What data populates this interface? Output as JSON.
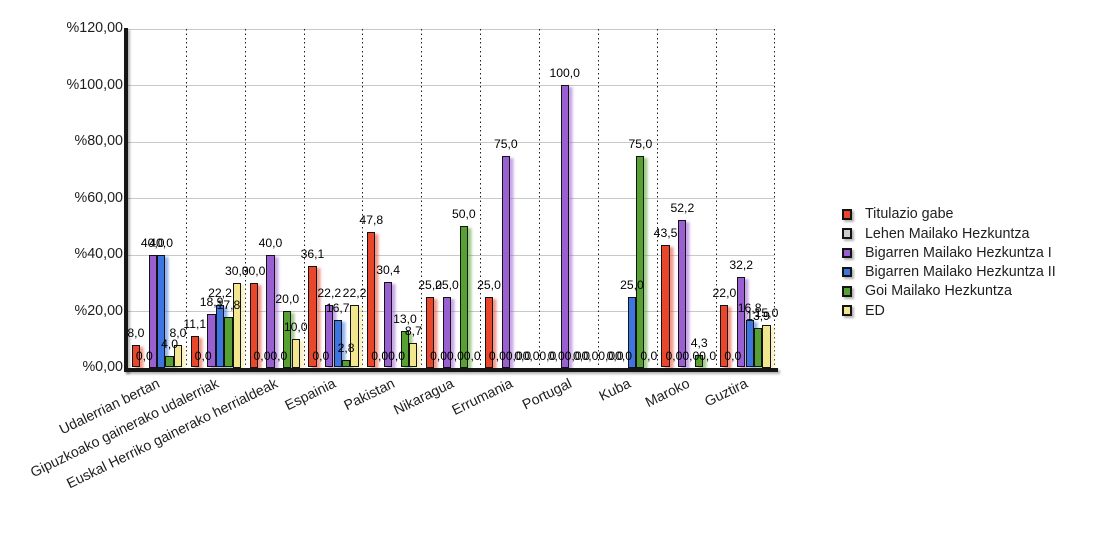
{
  "chart_data": {
    "type": "bar",
    "title": "",
    "categories": [
      "Udalerrian bertan",
      "Gipuzkoako gainerako udalerriak",
      "Euskal Herriko gainerako herrialdeak",
      "Espainia",
      "Pakistan",
      "Nikaragua",
      "Errumania",
      "Portugal",
      "Kuba",
      "Maroko",
      "Guztira"
    ],
    "series": [
      {
        "name": "Titulazio gabe",
        "color": "#e8472b",
        "values": [
          8.0,
          11.1,
          30.0,
          36.1,
          47.8,
          25.0,
          25.0,
          0.0,
          0.0,
          43.5,
          22.0
        ]
      },
      {
        "name": "Lehen Mailako Hezkuntza",
        "color": "#cccccc",
        "values": [
          0.0,
          0.0,
          0.0,
          0.0,
          0.0,
          0.0,
          0.0,
          0.0,
          0.0,
          0.0,
          0.0
        ]
      },
      {
        "name": "Bigarren Mailako Hezkuntza I",
        "color": "#9a60d1",
        "values": [
          40.0,
          18.9,
          40.0,
          22.2,
          30.4,
          25.0,
          75.0,
          100.0,
          0.0,
          52.2,
          32.2
        ]
      },
      {
        "name": "Bigarren Mailako Hezkuntza II",
        "color": "#3d76e0",
        "values": [
          40.0,
          22.2,
          0.0,
          16.7,
          0.0,
          0.0,
          0.0,
          0.0,
          25.0,
          0.0,
          16.8
        ]
      },
      {
        "name": "Goi Mailako Hezkuntza",
        "color": "#57a032",
        "values": [
          4.0,
          17.8,
          20.0,
          2.8,
          13.0,
          50.0,
          0.0,
          0.0,
          75.0,
          4.3,
          13.9
        ]
      },
      {
        "name": "ED",
        "color": "#f2e68f",
        "values": [
          8.0,
          30.0,
          10.0,
          22.2,
          8.7,
          0.0,
          0.0,
          0.0,
          0.0,
          0.0,
          15.0
        ]
      }
    ],
    "y_axis": {
      "unit_prefix": "%",
      "min": 0,
      "max": 120,
      "tick_step": 20,
      "tick_labels": [
        "%0,00",
        "%20,00",
        "%40,00",
        "%60,00",
        "%80,00",
        "%100,00",
        "%120,00"
      ],
      "tick_values": [
        0,
        20,
        40,
        60,
        80,
        100,
        120
      ]
    },
    "value_label_decimal_separator": ",",
    "grid": {
      "horizontal_lines": true,
      "vertical_dotted_lines": true
    },
    "legend_position": "right"
  }
}
